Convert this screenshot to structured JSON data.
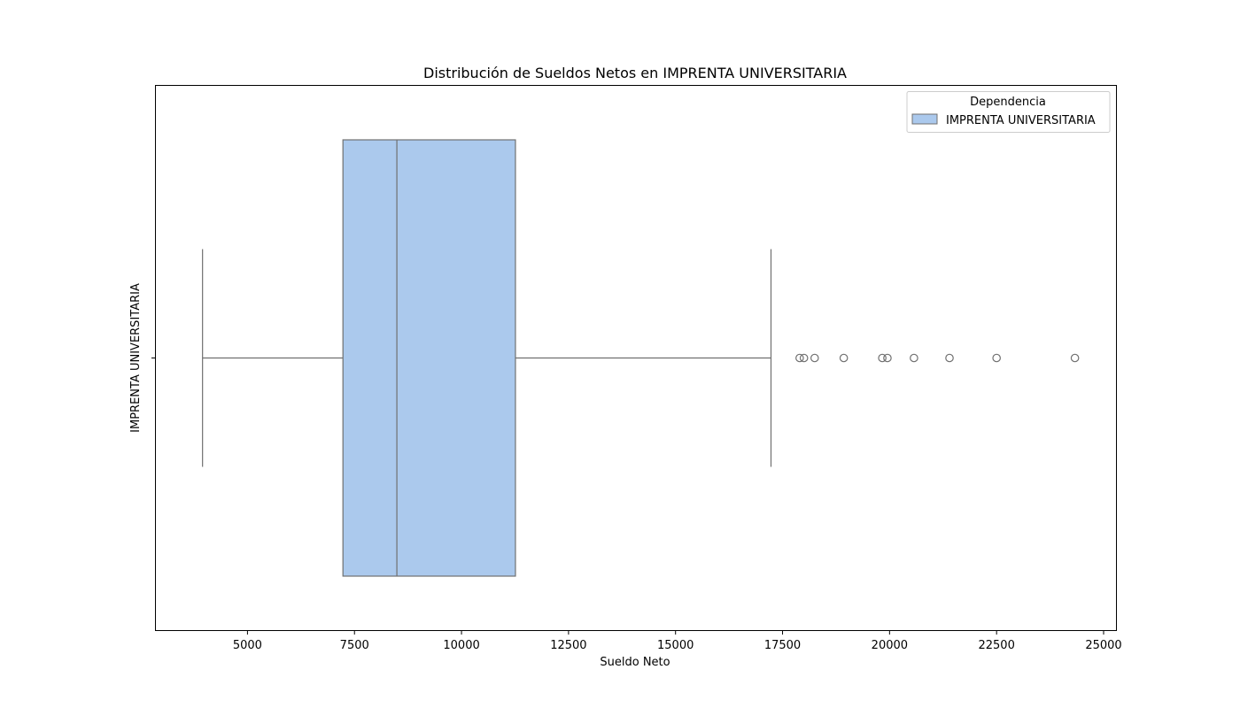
{
  "chart_data": {
    "type": "box",
    "title": "Distribución de Sueldos Netos en IMPRENTA UNIVERSITARIA",
    "xlabel": "Sueldo Neto",
    "ylabel": "IMPRENTA UNIVERSITARIA",
    "xlim": [
      2850,
      25300
    ],
    "xticks": [
      5000,
      7500,
      10000,
      12500,
      15000,
      17500,
      20000,
      22500,
      25000
    ],
    "orientation": "horizontal",
    "grid": false,
    "legend": {
      "title": "Dependencia",
      "placement": "top-right",
      "entries": [
        "IMPRENTA UNIVERSITARIA"
      ]
    },
    "series": [
      {
        "name": "IMPRENTA UNIVERSITARIA",
        "whisker_low": 3950,
        "q1": 7230,
        "median": 8490,
        "q3": 11260,
        "whisker_high": 17230,
        "outliers": [
          17900,
          18000,
          18250,
          18930,
          19830,
          19950,
          20570,
          21400,
          22500,
          24330
        ]
      }
    ],
    "colors": {
      "box_fill": "#abc9ed",
      "line": "#707070"
    }
  }
}
